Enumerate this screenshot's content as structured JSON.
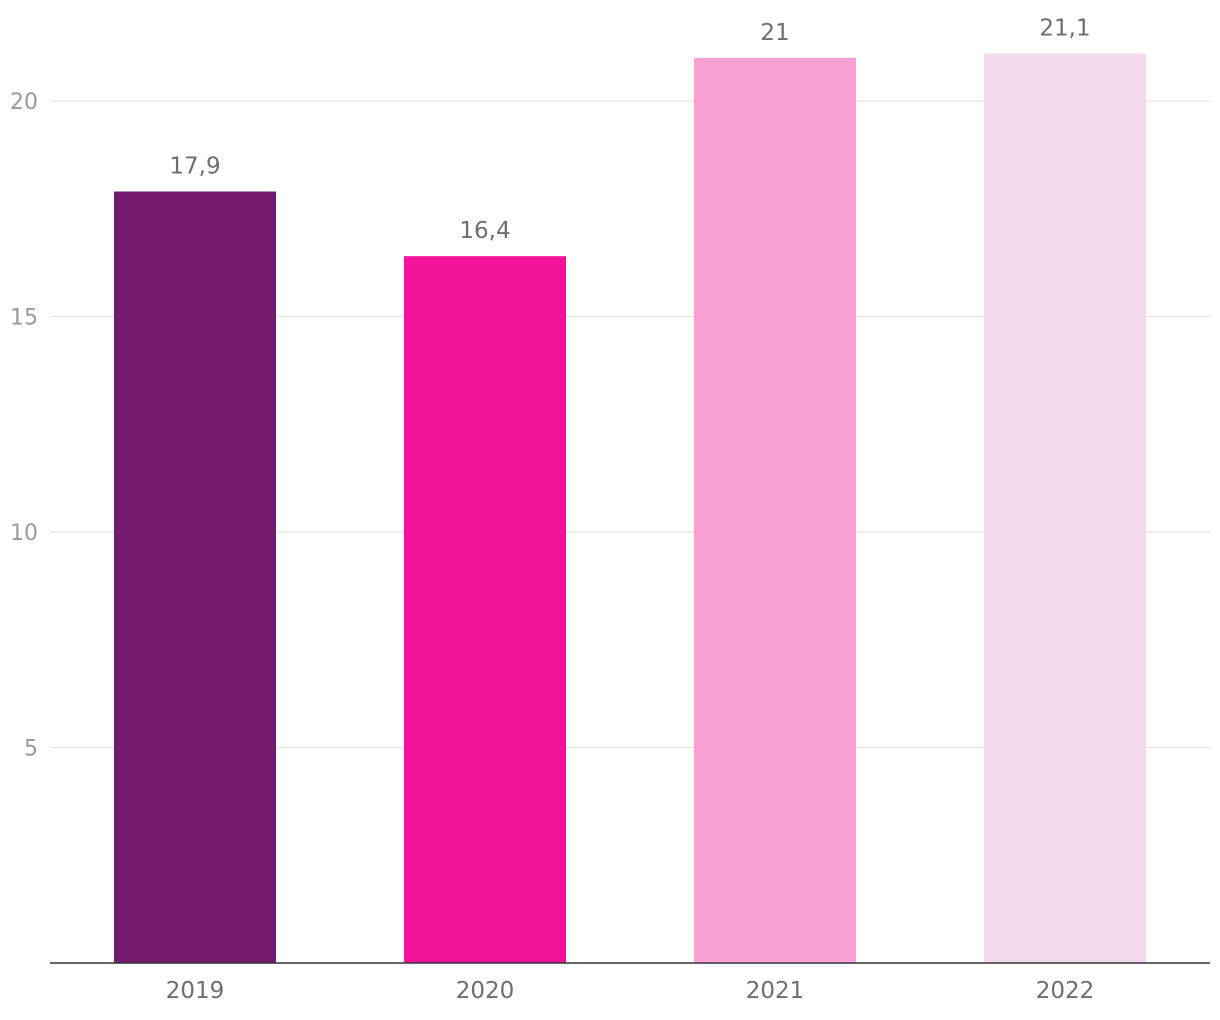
{
  "chart_data": {
    "type": "bar",
    "title": "",
    "xlabel": "",
    "ylabel": "",
    "categories": [
      "2019",
      "2020",
      "2021",
      "2022"
    ],
    "values": [
      17.9,
      16.4,
      21,
      21.1
    ],
    "value_labels": [
      "17,9",
      "16,4",
      "21",
      "21,1"
    ],
    "colors": [
      "#751a6c",
      "#f3129a",
      "#f9a0d5",
      "#f1dbec"
    ],
    "ylim": [
      0,
      22
    ],
    "y_ticks": [
      5,
      10,
      15,
      20
    ],
    "y_tick_labels": [
      "5",
      "10",
      "15",
      "20"
    ],
    "grid": true,
    "legend": "none"
  }
}
